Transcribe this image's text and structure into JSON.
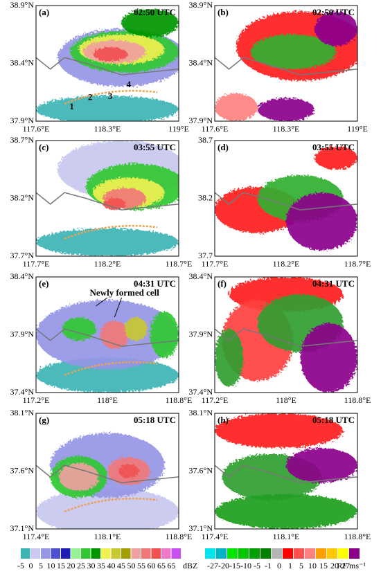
{
  "panels": [
    {
      "label": "(a)",
      "time": "02:50 UTC",
      "yticks": [
        "38.9°N",
        "38.4°N",
        "37.9°N"
      ],
      "xticks": [
        "117.6°E",
        "118.3°E",
        "119°E"
      ],
      "annotations": [
        "1",
        "2",
        "3",
        "4"
      ]
    },
    {
      "label": "(b)",
      "time": "02:50 UTC",
      "yticks": [
        "38.9°N",
        "38.4°N",
        "37.9°N"
      ],
      "xticks": [
        "117.6°E",
        "118.3°E",
        "119°E"
      ]
    },
    {
      "label": "(c)",
      "time": "03:55 UTC",
      "yticks": [
        "38.7°N",
        "38.2°N",
        "37.7°N"
      ],
      "xticks": [
        "117.7°E",
        "118.2°E",
        "118.7°E"
      ]
    },
    {
      "label": "(d)",
      "time": "03:55 UTC",
      "yticks": [
        "38.7",
        "38.2",
        "37.7"
      ],
      "xticks": [
        "117.7°E",
        "118.2°E",
        "118.7°E"
      ]
    },
    {
      "label": "(e)",
      "time": "04:31 UTC",
      "yticks": [
        "38.4°N",
        "37.9°N",
        "37.4°N"
      ],
      "xticks": [
        "117.2°E",
        "118°E",
        "118.8°E"
      ],
      "annotations": [
        "Newly formed cell"
      ]
    },
    {
      "label": "(f)",
      "time": "04:31 UTC",
      "yticks": [
        "38.4°N",
        "37.9°N",
        "37.4°N"
      ],
      "xticks": [
        "117.2°E",
        "118°E",
        "118.8°E"
      ]
    },
    {
      "label": "(g)",
      "time": "05:18 UTC",
      "yticks": [
        "38.1°N",
        "37.6°N",
        "37.1°N"
      ],
      "xticks": [
        "117.4°E",
        "118.1°E",
        "118.8°E"
      ]
    },
    {
      "label": "(h)",
      "time": "05:18 UTC",
      "yticks": [
        "38.1°N",
        "37.6°N",
        "37.1°N"
      ],
      "xticks": [
        "117.4°E",
        "118.1°E",
        "118.8°E"
      ]
    }
  ],
  "colorbars": [
    {
      "labels": [
        "-5",
        "0",
        "5",
        "10",
        "15",
        "20",
        "25",
        "30",
        "35",
        "40",
        "45",
        "50",
        "55",
        "60",
        "65",
        "65"
      ],
      "unit": "dBZ",
      "colors": [
        "#3cb4b4",
        "#c8c8f0",
        "#9696e6",
        "#5050d2",
        "#1e1eb4",
        "#96f096",
        "#32c832",
        "#009600",
        "#f0f050",
        "#c8c832",
        "#a0a000",
        "#f0a0a0",
        "#f07878",
        "#f05050",
        "#f078c8",
        "#c850f0"
      ]
    },
    {
      "labels": [
        "-27",
        "-20",
        "-15",
        "-10",
        "-5",
        "-1",
        "0",
        "1",
        "5",
        "10",
        "15",
        "20",
        "27"
      ],
      "unit": "RF ms⁻¹",
      "colors": [
        "#00e6f0",
        "#00b4c8",
        "#00e600",
        "#00c800",
        "#00a000",
        "#008200",
        "#b4b4b4",
        "#ff0000",
        "#ff5050",
        "#ff8080",
        "#ffa000",
        "#ffc800",
        "#ffff00",
        "#8c008c"
      ]
    }
  ]
}
